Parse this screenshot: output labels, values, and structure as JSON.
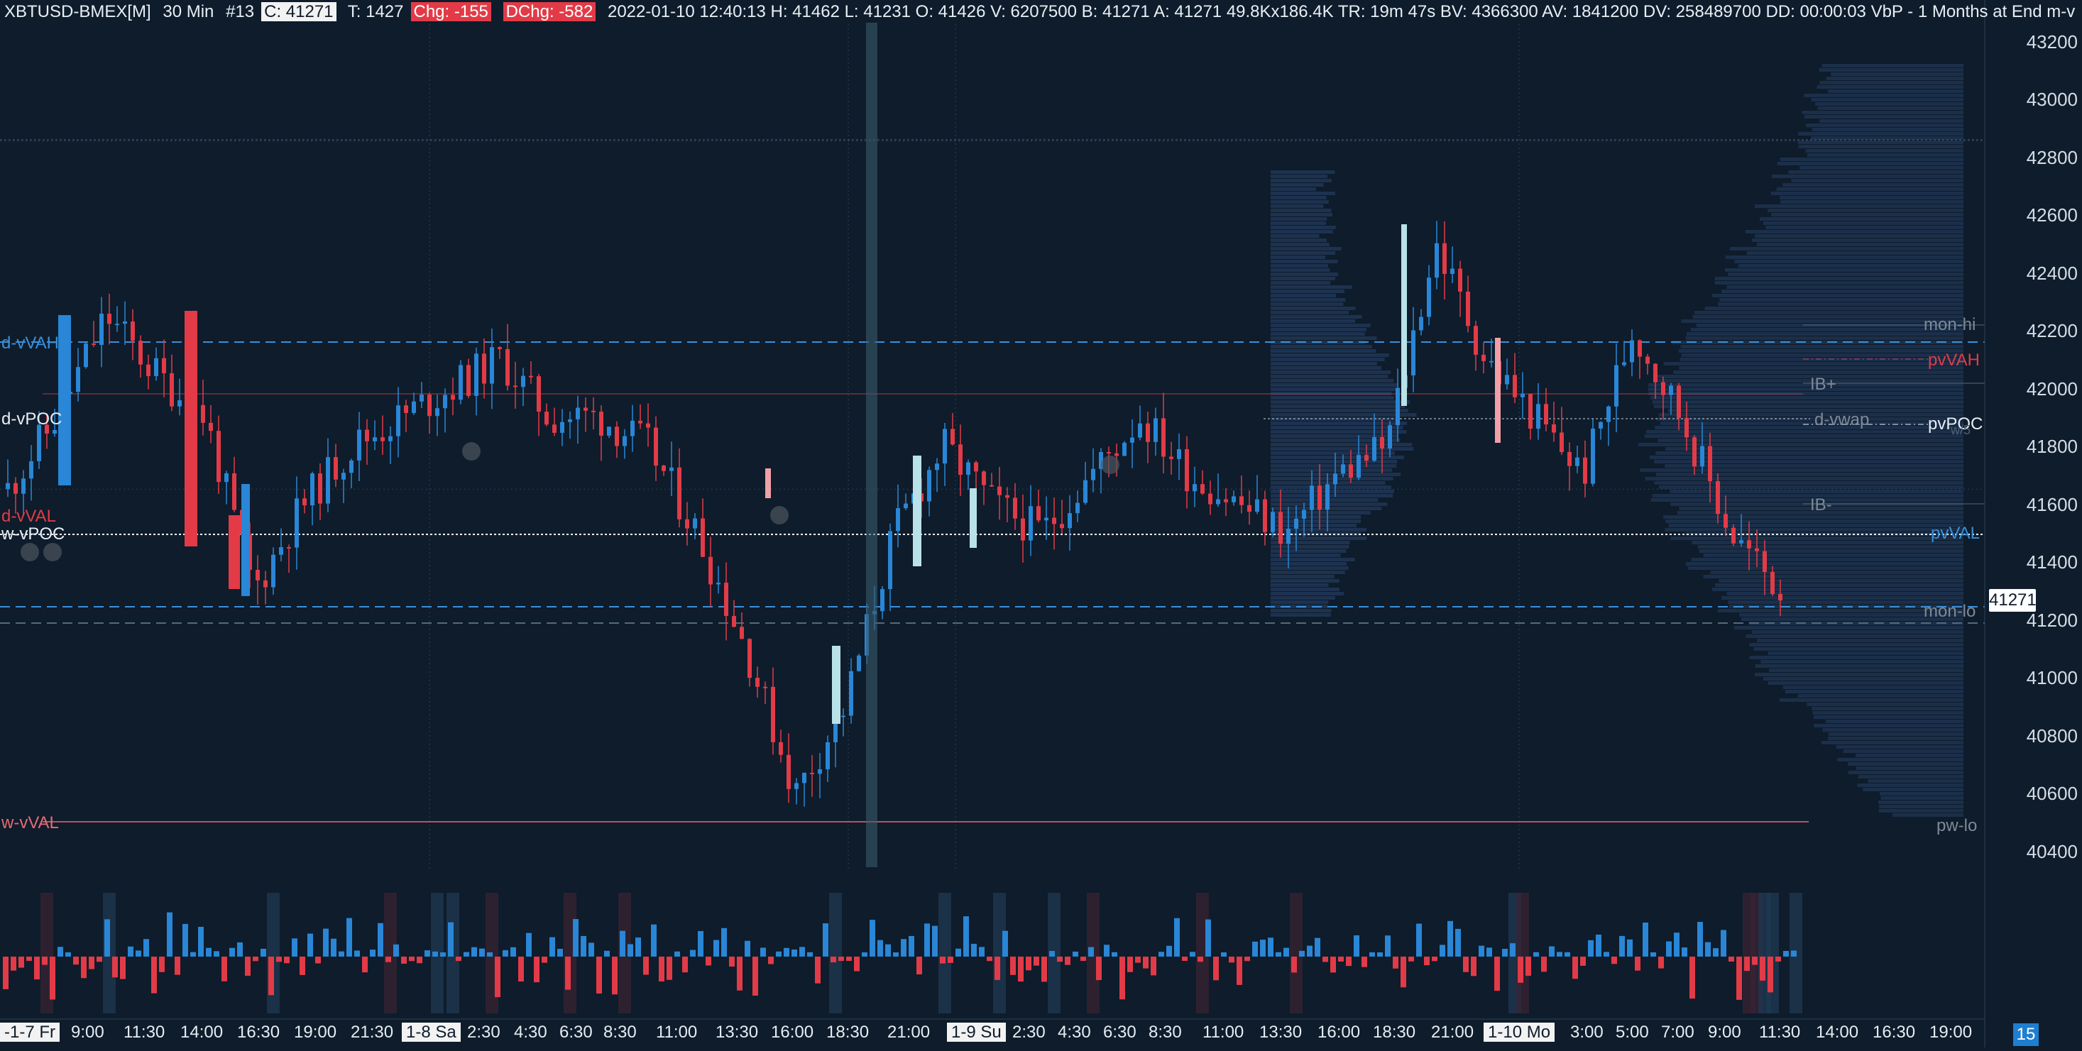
{
  "header": {
    "symbol": "XBTUSD-BMEX[M]",
    "interval": "30 Min",
    "bar_no": "#13",
    "close": "C: 41271",
    "trades": "T: 1427",
    "chg": "Chg: -155",
    "dchg": "DChg: -582",
    "rest": "2022-01-10 12:40:13 H: 41462 L: 41231 O: 41426 V: 6207500 B: 41271 A: 41271 49.8Kx186.4K TR: 19m 47s BV: 4366300 AV: 1841200 DV: 258489700 DD: 00:00:03 VbP - 1 Months at End  m-v"
  },
  "price_axis": {
    "labels": [
      "43200",
      "43000",
      "42800",
      "42600",
      "42400",
      "42200",
      "42000",
      "41800",
      "41600",
      "41400",
      "41200",
      "41000",
      "40800",
      "40600",
      "40400"
    ],
    "last_price": "41271"
  },
  "levels_left": {
    "d_vvah": "d-vVAH",
    "d_vpoc": "d-vPOC",
    "d_vval": "d-vVAL",
    "w_vpoc": "w-vPOC",
    "w_vval": "w-vVAL"
  },
  "levels_right": {
    "mon_hi": "mon-hi",
    "pvvah": "pvVAH",
    "ib_plus": "IB+",
    "d_vwap": "d-vwap",
    "pvpoc": "pvPOC",
    "w_vpoc_tag": "w/5",
    "ib_minus": "IB-",
    "pvval": "pvVAL",
    "mon_lo": "mon-lo",
    "pw_lo": "pw-lo"
  },
  "time_axis": {
    "d1": "-1-7 Fr",
    "t1": "9:00",
    "t2": "11:30",
    "t3": "14:00",
    "t4": "16:30",
    "t5": "19:00",
    "t6": "21:30",
    "d2": "1-8 Sa",
    "t7": "2:30",
    "t8": "4:30",
    "t9": "6:30",
    "t10": "8:30",
    "t11": "11:00",
    "t12": "13:30",
    "t13": "16:00",
    "t14": "18:30",
    "t15": "21:00",
    "d3": "1-9 Su",
    "t16": "2:30",
    "t17": "4:30",
    "t18": "6:30",
    "t19": "8:30",
    "t20": "11:00",
    "t21": "13:30",
    "t22": "16:00",
    "t23": "18:30",
    "t24": "21:00",
    "d4": "1-10 Mo",
    "t25": "3:00",
    "t26": "5:00",
    "t27": "7:00",
    "t28": "9:00",
    "t29": "11:30",
    "t30": "14:00",
    "t31": "16:30",
    "t32": "19:00"
  },
  "page_number": "15",
  "colors": {
    "up": "#2a86d6",
    "down": "#e23b47",
    "up_light": "#b9e1e8",
    "down_light": "#f0a0a8",
    "bg": "#0e1c2b",
    "profile": "#1d3250"
  }
}
